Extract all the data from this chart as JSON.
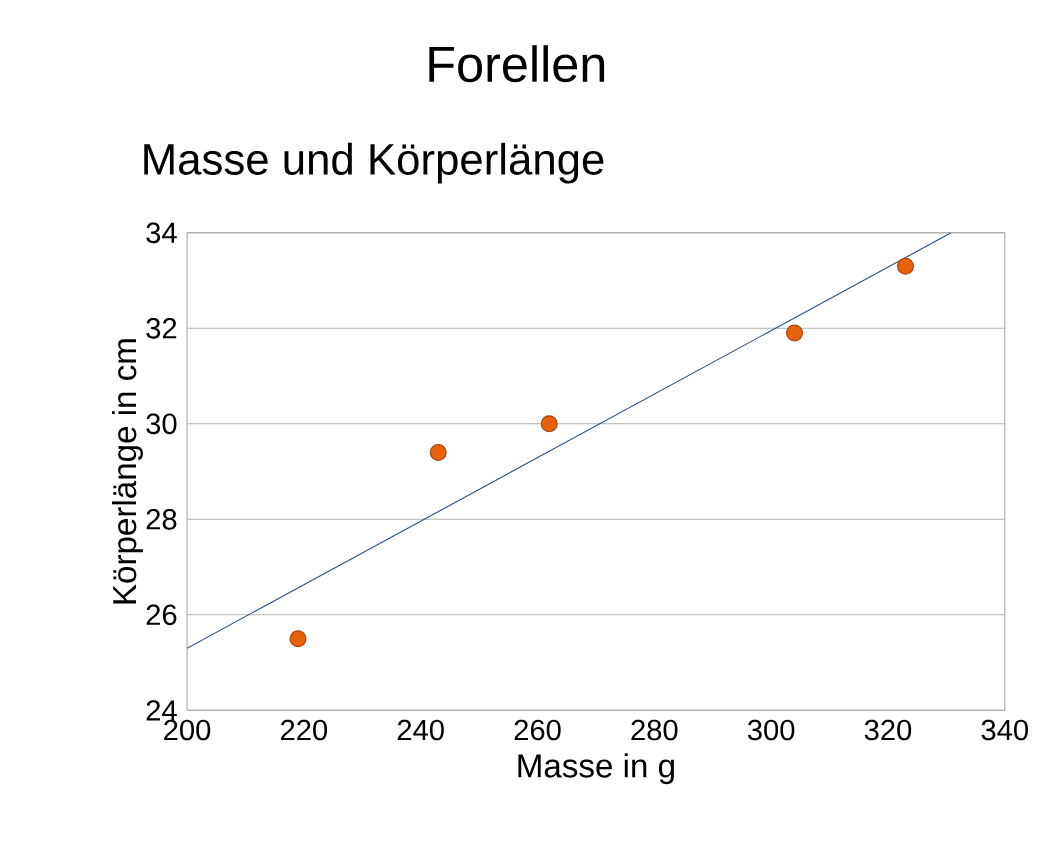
{
  "chart_data": {
    "type": "scatter",
    "title": "Forellen",
    "subtitle": "Masse und Körperlänge",
    "xlabel": "Masse in g",
    "ylabel": "Körperlänge in cm",
    "series": [
      {
        "color": "#e8600a",
        "marker": "circle",
        "x": [
          219,
          243,
          262,
          304,
          323
        ],
        "values": [
          25.5,
          29.4,
          30.0,
          31.9,
          33.3
        ]
      },
      {
        "type": "line",
        "color": "#1f4e79",
        "marker": "none",
        "x": [
          200,
          330.8
        ],
        "values": [
          25.3,
          34
        ]
      }
    ],
    "xlim": [
      200,
      340
    ],
    "ylim": [
      24,
      34
    ],
    "xticks": [
      200,
      220,
      240,
      260,
      280,
      300,
      320,
      340
    ],
    "yticks": [
      24,
      26,
      28,
      30,
      32,
      34
    ],
    "grid": "y"
  }
}
